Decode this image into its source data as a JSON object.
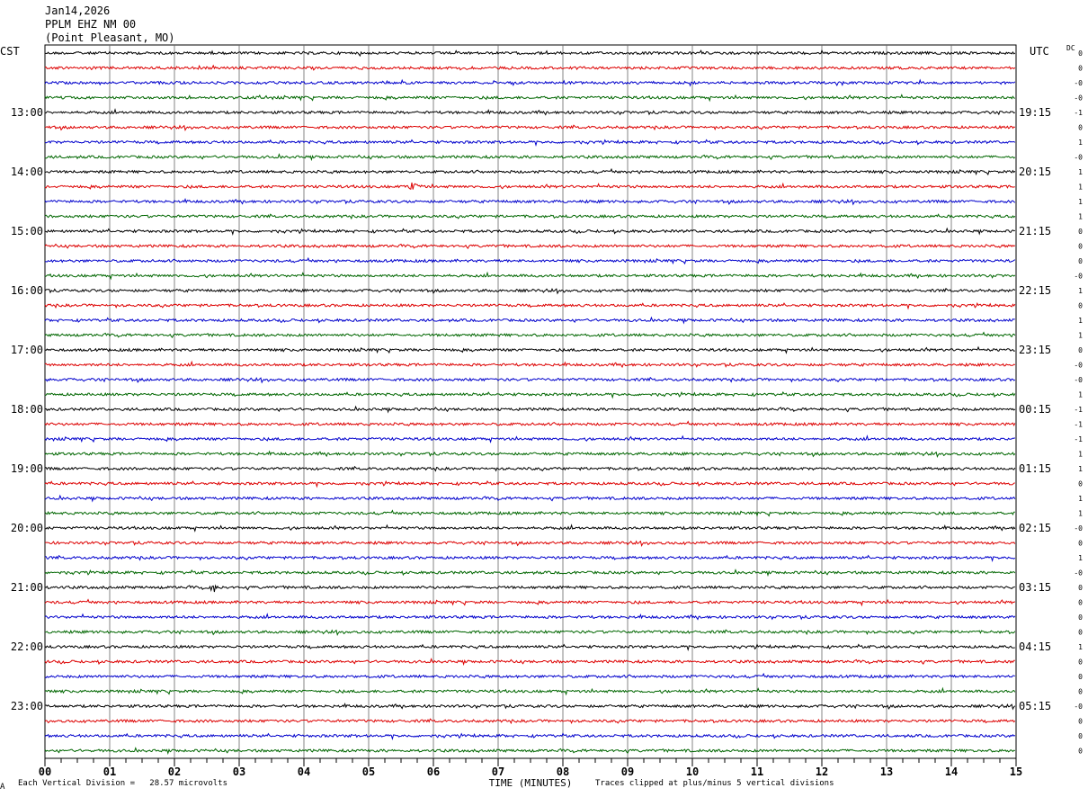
{
  "header": {
    "date": "Jan14,2026",
    "station": "PPLM EHZ NM 00",
    "location": "(Point Pleasant, MO)"
  },
  "left_tz": "CST",
  "right_tz": "UTC",
  "dc_label": "DC",
  "footer": {
    "scale_note": "Each Vertical Division =   28.57 microvolts",
    "clip_note": "Traces clipped at plus/minus 5 vertical divisions",
    "corner_mark": "A"
  },
  "colors": {
    "trace_cycle": [
      "#000000",
      "#dd0000",
      "#0000cc",
      "#006600"
    ],
    "grid": "#666666",
    "frame": "#000000",
    "background": "#ffffff"
  },
  "chart_data": {
    "type": "line",
    "title": "",
    "xlabel": "TIME (MINUTES)",
    "ylabel": "",
    "xlim": [
      0,
      15
    ],
    "x_ticks": [
      "00",
      "01",
      "02",
      "03",
      "04",
      "05",
      "06",
      "07",
      "08",
      "09",
      "10",
      "11",
      "12",
      "13",
      "14",
      "15"
    ],
    "minor_tick_step_min": 0.25,
    "traces_per_hour": 4,
    "trace_count": 48,
    "left_hour_labels": [
      "13:00",
      "14:00",
      "15:00",
      "16:00",
      "17:00",
      "18:00",
      "19:00",
      "20:00",
      "21:00",
      "22:00",
      "23:00"
    ],
    "right_hour_labels": [
      "19:15",
      "20:15",
      "21:15",
      "22:15",
      "23:15",
      "00:15",
      "01:15",
      "02:15",
      "03:15",
      "04:15",
      "05:15"
    ],
    "first_labeled_trace_index": 4,
    "dc_offsets": [
      "0",
      "0",
      "-0",
      "-0",
      "-1",
      "0",
      "1",
      "-0",
      "1",
      "1",
      "1",
      "1",
      "0",
      "0",
      "0",
      "-0",
      "1",
      "0",
      "1",
      "1",
      "0",
      "-0",
      "-0",
      "1",
      "-1",
      "-1",
      "-1",
      "1",
      "1",
      "0",
      "1",
      "1",
      "-0",
      "0",
      "1",
      "-0",
      "0",
      "0",
      "0",
      "0",
      "1",
      "0",
      "0",
      "0",
      "-0",
      "0",
      "0",
      "0"
    ],
    "events": [
      {
        "trace_index": 9,
        "minute": 5.7,
        "amplitude": "moderate"
      },
      {
        "trace_index": 36,
        "minute": 2.6,
        "amplitude": "moderate"
      }
    ],
    "grid": true
  }
}
